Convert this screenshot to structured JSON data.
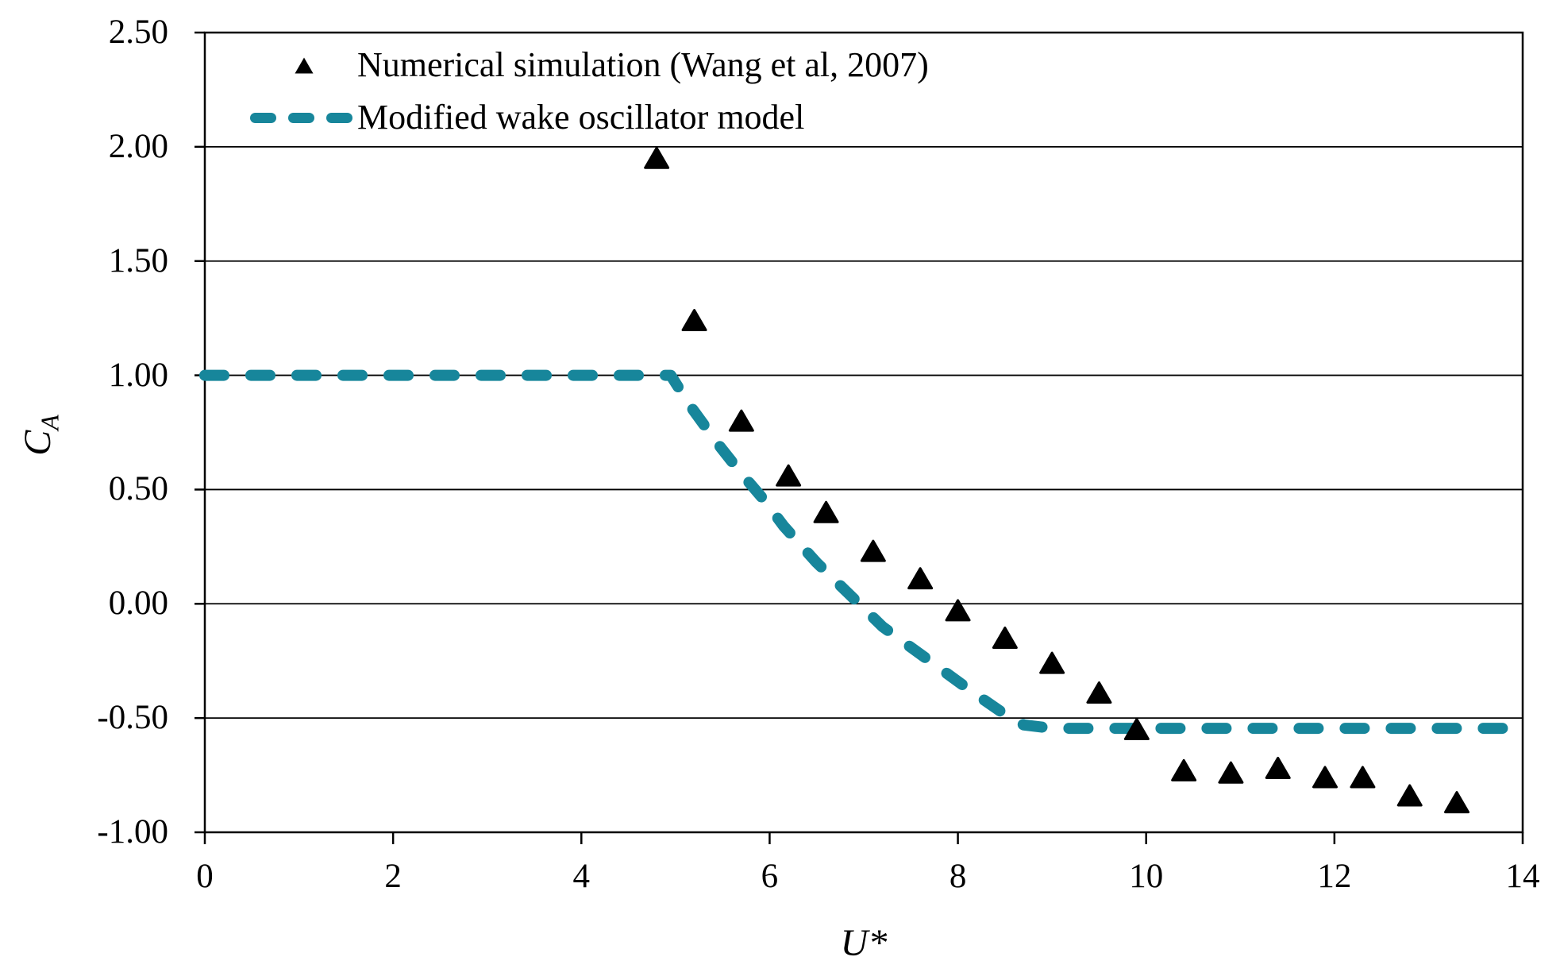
{
  "figure": {
    "background": "#ffffff",
    "text_color": "#000000"
  },
  "legend": {
    "items": [
      {
        "label": "Numerical simulation (Wang et al, 2007)",
        "marker": "triangle",
        "color": "#000000"
      },
      {
        "label": "Modified wake oscillator model",
        "marker": "dashed-line",
        "color": "#17869B"
      }
    ]
  },
  "chart_data": {
    "type": "scatter",
    "title": "",
    "xlabel": "U*",
    "ylabel": "CA",
    "ylabel_main": "C",
    "ylabel_sub": "A",
    "xlim": [
      0,
      14
    ],
    "ylim": [
      -1.0,
      2.5
    ],
    "xticks": [
      0,
      2,
      4,
      6,
      8,
      10,
      12,
      14
    ],
    "ytick_values": [
      2.5,
      2.0,
      1.5,
      1.0,
      0.5,
      0.0,
      -0.5,
      -1.0
    ],
    "ytick_labels": [
      "2.50",
      "2.00",
      "1.50",
      "1.00",
      "0.50",
      "0.00",
      "-0.50",
      "-1.00"
    ],
    "grid": "horizontal",
    "legend_position": "top-left-inside",
    "colors": {
      "scatter": "#000000",
      "model_line": "#17869B",
      "grid": "#000000",
      "axis": "#000000"
    },
    "series": [
      {
        "name": "Numerical simulation (Wang et al, 2007)",
        "type": "scatter",
        "marker": "triangle",
        "color": "#000000",
        "points": [
          [
            4.8,
            1.95
          ],
          [
            5.2,
            1.24
          ],
          [
            5.7,
            0.8
          ],
          [
            6.2,
            0.56
          ],
          [
            6.6,
            0.4
          ],
          [
            7.1,
            0.23
          ],
          [
            7.6,
            0.11
          ],
          [
            8.0,
            -0.03
          ],
          [
            8.5,
            -0.15
          ],
          [
            9.0,
            -0.26
          ],
          [
            9.5,
            -0.39
          ],
          [
            9.9,
            -0.55
          ],
          [
            10.4,
            -0.73
          ],
          [
            10.9,
            -0.74
          ],
          [
            11.4,
            -0.72
          ],
          [
            11.9,
            -0.76
          ],
          [
            12.3,
            -0.76
          ],
          [
            12.8,
            -0.84
          ],
          [
            13.3,
            -0.87
          ]
        ]
      },
      {
        "name": "Modified wake oscillator model",
        "type": "line",
        "style": "dashed",
        "color": "#17869B",
        "points": [
          [
            0,
            1.0
          ],
          [
            4.95,
            1.0
          ],
          [
            5.15,
            0.87
          ],
          [
            5.45,
            0.7
          ],
          [
            5.7,
            0.57
          ],
          [
            5.95,
            0.45
          ],
          [
            6.15,
            0.34
          ],
          [
            6.5,
            0.18
          ],
          [
            6.8,
            0.06
          ],
          [
            7.2,
            -0.1
          ],
          [
            7.7,
            -0.25
          ],
          [
            8.1,
            -0.37
          ],
          [
            8.45,
            -0.47
          ],
          [
            8.7,
            -0.53
          ],
          [
            9.0,
            -0.545
          ],
          [
            14,
            -0.545
          ]
        ]
      }
    ]
  }
}
